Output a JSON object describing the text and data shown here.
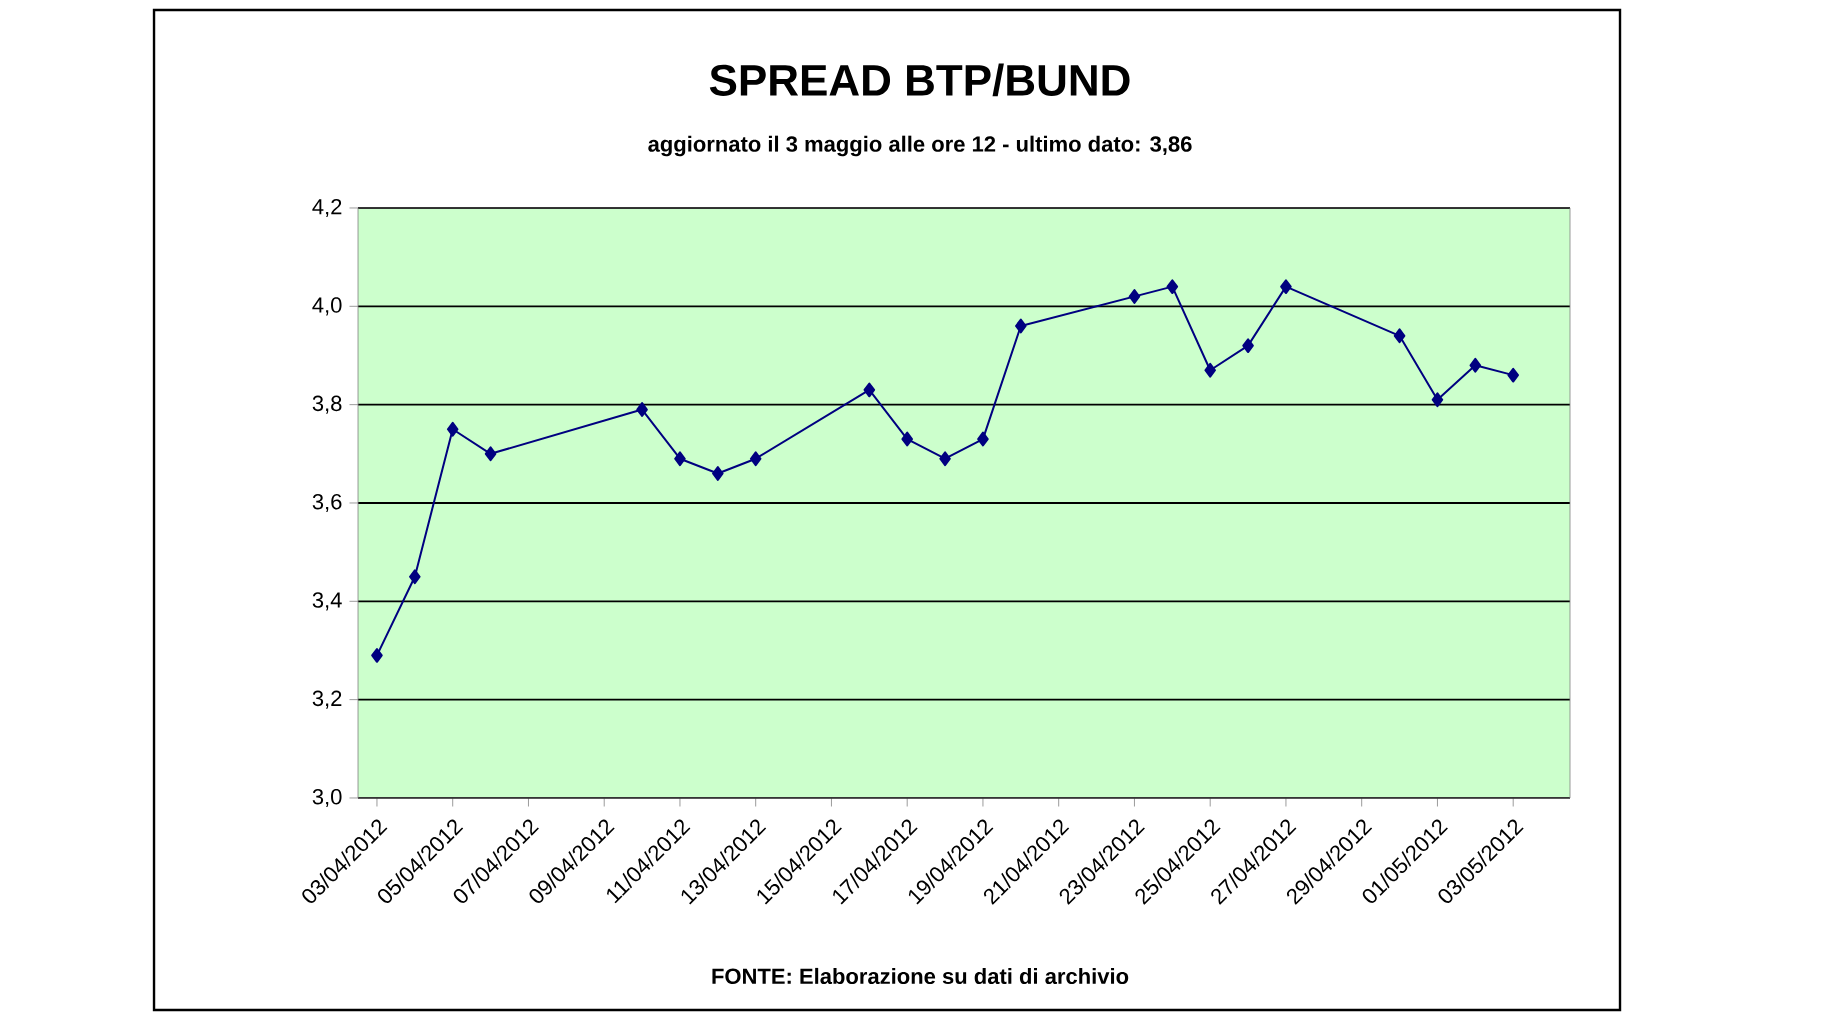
{
  "chart_data": {
    "type": "line",
    "title": "SPREAD BTP/BUND",
    "subtitle": "aggiornato il 3 maggio alle ore 12 - ultimo dato: 3,86",
    "annotations": [
      "FONTE: Elaborazione su dati di archivio"
    ],
    "x": [
      "2012-04-03",
      "2012-04-04",
      "2012-04-05",
      "2012-04-06",
      "2012-04-10",
      "2012-04-11",
      "2012-04-12",
      "2012-04-13",
      "2012-04-16",
      "2012-04-17",
      "2012-04-18",
      "2012-04-19",
      "2012-04-20",
      "2012-04-23",
      "2012-04-24",
      "2012-04-25",
      "2012-04-26",
      "2012-04-27",
      "2012-04-30",
      "2012-05-01",
      "2012-05-02",
      "2012-05-03"
    ],
    "series": [
      {
        "color": "#000080",
        "values": [
          3.29,
          3.45,
          3.75,
          3.7,
          3.79,
          3.69,
          3.66,
          3.69,
          3.83,
          3.73,
          3.69,
          3.73,
          3.96,
          4.02,
          4.04,
          3.87,
          3.92,
          4.04,
          3.94,
          3.81,
          3.88,
          3.86
        ]
      }
    ],
    "xlim": [
      "2012-04-02T12:00",
      "2012-05-04T12:00"
    ],
    "xticks": [
      {
        "value": "2012-04-03",
        "label": "03/04/2012"
      },
      {
        "value": "2012-04-05",
        "label": "05/04/2012"
      },
      {
        "value": "2012-04-07",
        "label": "07/04/2012"
      },
      {
        "value": "2012-04-09",
        "label": "09/04/2012"
      },
      {
        "value": "2012-04-11",
        "label": "11/04/2012"
      },
      {
        "value": "2012-04-13",
        "label": "13/04/2012"
      },
      {
        "value": "2012-04-15",
        "label": "15/04/2012"
      },
      {
        "value": "2012-04-17",
        "label": "17/04/2012"
      },
      {
        "value": "2012-04-19",
        "label": "19/04/2012"
      },
      {
        "value": "2012-04-21",
        "label": "21/04/2012"
      },
      {
        "value": "2012-04-23",
        "label": "23/04/2012"
      },
      {
        "value": "2012-04-25",
        "label": "25/04/2012"
      },
      {
        "value": "2012-04-27",
        "label": "27/04/2012"
      },
      {
        "value": "2012-04-29",
        "label": "29/04/2012"
      },
      {
        "value": "2012-05-01",
        "label": "01/05/2012"
      },
      {
        "value": "2012-05-03",
        "label": "03/05/2012"
      }
    ],
    "ylim": [
      3.0,
      4.2
    ],
    "yticks": [
      {
        "value": 3.0,
        "label": "3,0"
      },
      {
        "value": 3.2,
        "label": "3,2"
      },
      {
        "value": 3.4,
        "label": "3,4"
      },
      {
        "value": 3.6,
        "label": "3,6"
      },
      {
        "value": 3.8,
        "label": "3,8"
      },
      {
        "value": 4.0,
        "label": "4,0"
      },
      {
        "value": 4.2,
        "label": "4,2"
      }
    ],
    "grid": "y",
    "marker": "diamond",
    "line_style": "solid"
  }
}
